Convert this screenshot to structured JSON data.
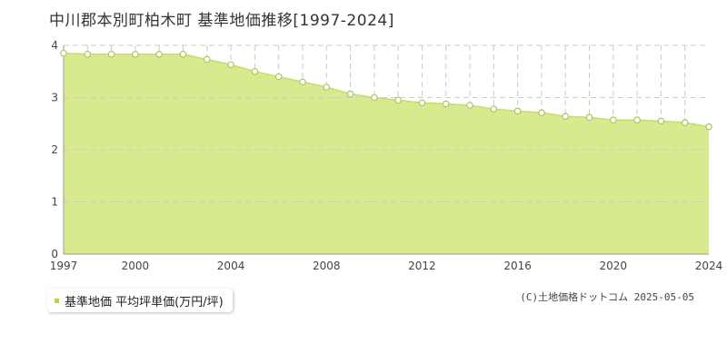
{
  "title": "中川郡本別町柏木町 基準地価推移[1997-2024]",
  "legend": {
    "label": "基準地価 平均坪単価(万円/坪)"
  },
  "copyright": "(C)土地価格ドットコム 2025-05-05",
  "colors": {
    "fill": "#d7ea90",
    "line": "#c5dd6a",
    "point_fill": "#ffffff",
    "point_stroke": "#a9c85a",
    "legend_swatch": "#b5d442",
    "grid": "#cccccc"
  },
  "chart_data": {
    "type": "area",
    "x": [
      1997,
      1998,
      1999,
      2000,
      2001,
      2002,
      2003,
      2004,
      2005,
      2006,
      2007,
      2008,
      2009,
      2010,
      2011,
      2012,
      2013,
      2014,
      2015,
      2016,
      2017,
      2018,
      2019,
      2020,
      2021,
      2022,
      2023,
      2024
    ],
    "series": [
      {
        "name": "基準地価 平均坪単価(万円/坪)",
        "values": [
          3.85,
          3.83,
          3.83,
          3.83,
          3.83,
          3.83,
          3.73,
          3.63,
          3.5,
          3.4,
          3.3,
          3.2,
          3.07,
          3.0,
          2.95,
          2.9,
          2.88,
          2.85,
          2.78,
          2.74,
          2.71,
          2.64,
          2.62,
          2.57,
          2.57,
          2.55,
          2.52,
          2.44
        ]
      }
    ],
    "xticks": [
      1997,
      2000,
      2004,
      2008,
      2012,
      2016,
      2020,
      2024
    ],
    "yticks": [
      0,
      1,
      2,
      3,
      4
    ],
    "xlim": [
      1997,
      2024
    ],
    "ylim": [
      0,
      4
    ],
    "grid": true,
    "legend_position": "bottom-left"
  }
}
